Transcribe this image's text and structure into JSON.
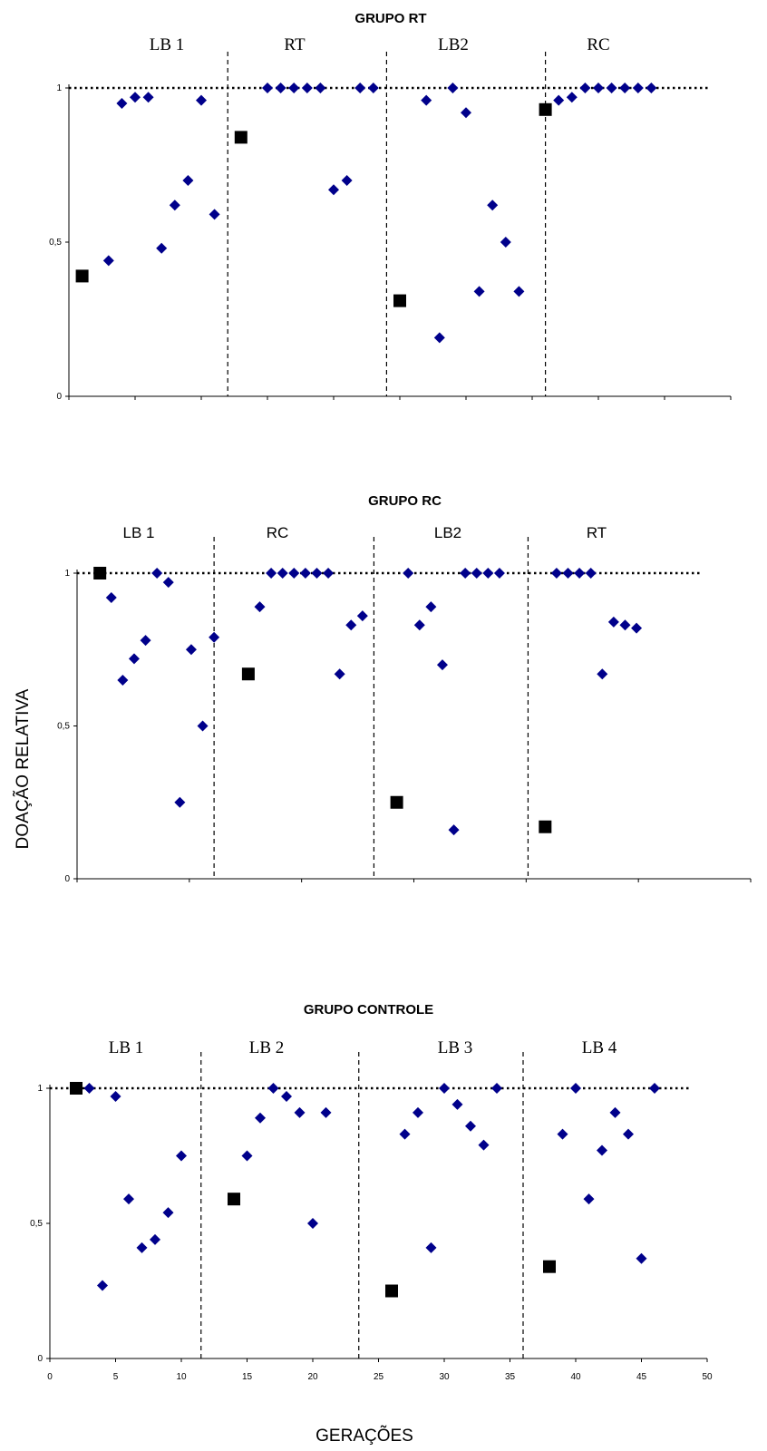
{
  "ylabel": "DOAÇÃO RELATIVA",
  "xlabel": "GERAÇÕES",
  "colors": {
    "marker": "#00008B",
    "square": "#000000",
    "axis": "#000000"
  },
  "chart_data": [
    {
      "type": "scatter",
      "title": "GRUPO RT",
      "phases": [
        "LB 1",
        "RT",
        "LB2",
        "RC"
      ],
      "phase_boundaries": [
        12,
        24,
        36
      ],
      "xlim": [
        0,
        50
      ],
      "ylim": [
        0,
        1
      ],
      "yticks": [
        "0",
        "0,5",
        "1"
      ],
      "grid": false,
      "reference_line": 1,
      "series": [
        {
          "marker": "diamond",
          "x": [
            3,
            4,
            5,
            6,
            7,
            8,
            9,
            10,
            11,
            15,
            16,
            17,
            18,
            19,
            20,
            21,
            22,
            23,
            27,
            28,
            29,
            30,
            31,
            32,
            33,
            34,
            37,
            38,
            39,
            40,
            41,
            42,
            43,
            44
          ],
          "y": [
            0.44,
            0.95,
            0.97,
            0.97,
            0.48,
            0.62,
            0.7,
            0.96,
            0.59,
            1,
            1,
            1,
            1,
            1,
            0.67,
            0.7,
            1,
            1,
            0.96,
            0.19,
            1,
            0.92,
            0.34,
            0.62,
            0.5,
            0.34,
            0.96,
            0.97,
            1,
            1,
            1,
            1,
            1,
            1
          ]
        },
        {
          "marker": "square",
          "x": [
            1,
            13,
            25,
            36
          ],
          "y": [
            0.39,
            0.84,
            0.31,
            0.93
          ]
        }
      ]
    },
    {
      "type": "scatter",
      "title": "GRUPO RC",
      "phases": [
        "LB 1",
        "RC",
        "LB2",
        "RT"
      ],
      "phase_boundaries": [
        12,
        26,
        39.5
      ],
      "xlim": [
        0,
        59
      ],
      "ylim": [
        0,
        1
      ],
      "yticks": [
        "0",
        "0,5",
        "1"
      ],
      "grid": false,
      "reference_line": 1,
      "series": [
        {
          "marker": "diamond",
          "x": [
            3,
            4,
            5,
            6,
            7,
            8,
            9,
            10,
            11,
            12,
            16,
            17,
            18,
            19,
            20,
            21,
            22,
            23,
            24,
            25,
            29,
            30,
            31,
            32,
            33,
            34,
            35,
            36,
            37,
            42,
            43,
            44,
            45,
            46,
            47,
            48,
            49
          ],
          "y": [
            0.92,
            0.65,
            0.72,
            0.78,
            1,
            0.97,
            0.25,
            0.75,
            0.5,
            0.79,
            0.89,
            1,
            1,
            1,
            1,
            1,
            1,
            0.67,
            0.83,
            0.86,
            1,
            0.83,
            0.89,
            0.7,
            0.16,
            1,
            1,
            1,
            1,
            1,
            1,
            1,
            1,
            0.67,
            0.84,
            0.83,
            0.82
          ],
          "note_hidden": false
        },
        {
          "marker": "square",
          "x": [
            2,
            15,
            28,
            41
          ],
          "y": [
            1,
            0.67,
            0.25,
            0.17
          ]
        }
      ]
    },
    {
      "type": "scatter",
      "title": "GRUPO CONTROLE",
      "phases": [
        "LB 1",
        "LB 2",
        "LB 3",
        "LB 4"
      ],
      "phase_boundaries": [
        11.5,
        23.5,
        36
      ],
      "xlim": [
        0,
        50
      ],
      "xticks": [
        0,
        5,
        10,
        15,
        20,
        25,
        30,
        35,
        40,
        45,
        50
      ],
      "ylim": [
        0,
        1
      ],
      "yticks": [
        "0",
        "0,5",
        "1"
      ],
      "grid": false,
      "reference_line": 1,
      "series": [
        {
          "marker": "diamond",
          "x": [
            3,
            4,
            5,
            6,
            7,
            8,
            9,
            10,
            15,
            16,
            17,
            18,
            19,
            20,
            21,
            27,
            28,
            29,
            30,
            31,
            32,
            33,
            34,
            39,
            40,
            41,
            42,
            43,
            44,
            45,
            46
          ],
          "y": [
            1,
            0.27,
            0.97,
            0.59,
            0.41,
            0.44,
            0.54,
            0.75,
            0.75,
            0.89,
            1,
            0.97,
            0.91,
            0.5,
            0.91,
            0.83,
            0.91,
            0.41,
            1,
            0.94,
            0.86,
            0.79,
            1,
            0.83,
            1,
            0.59,
            0.77,
            0.91,
            0.83,
            0.37,
            1
          ]
        },
        {
          "marker": "square",
          "x": [
            2,
            14,
            26,
            38
          ],
          "y": [
            1,
            0.59,
            0.25,
            0.34
          ]
        }
      ]
    }
  ]
}
